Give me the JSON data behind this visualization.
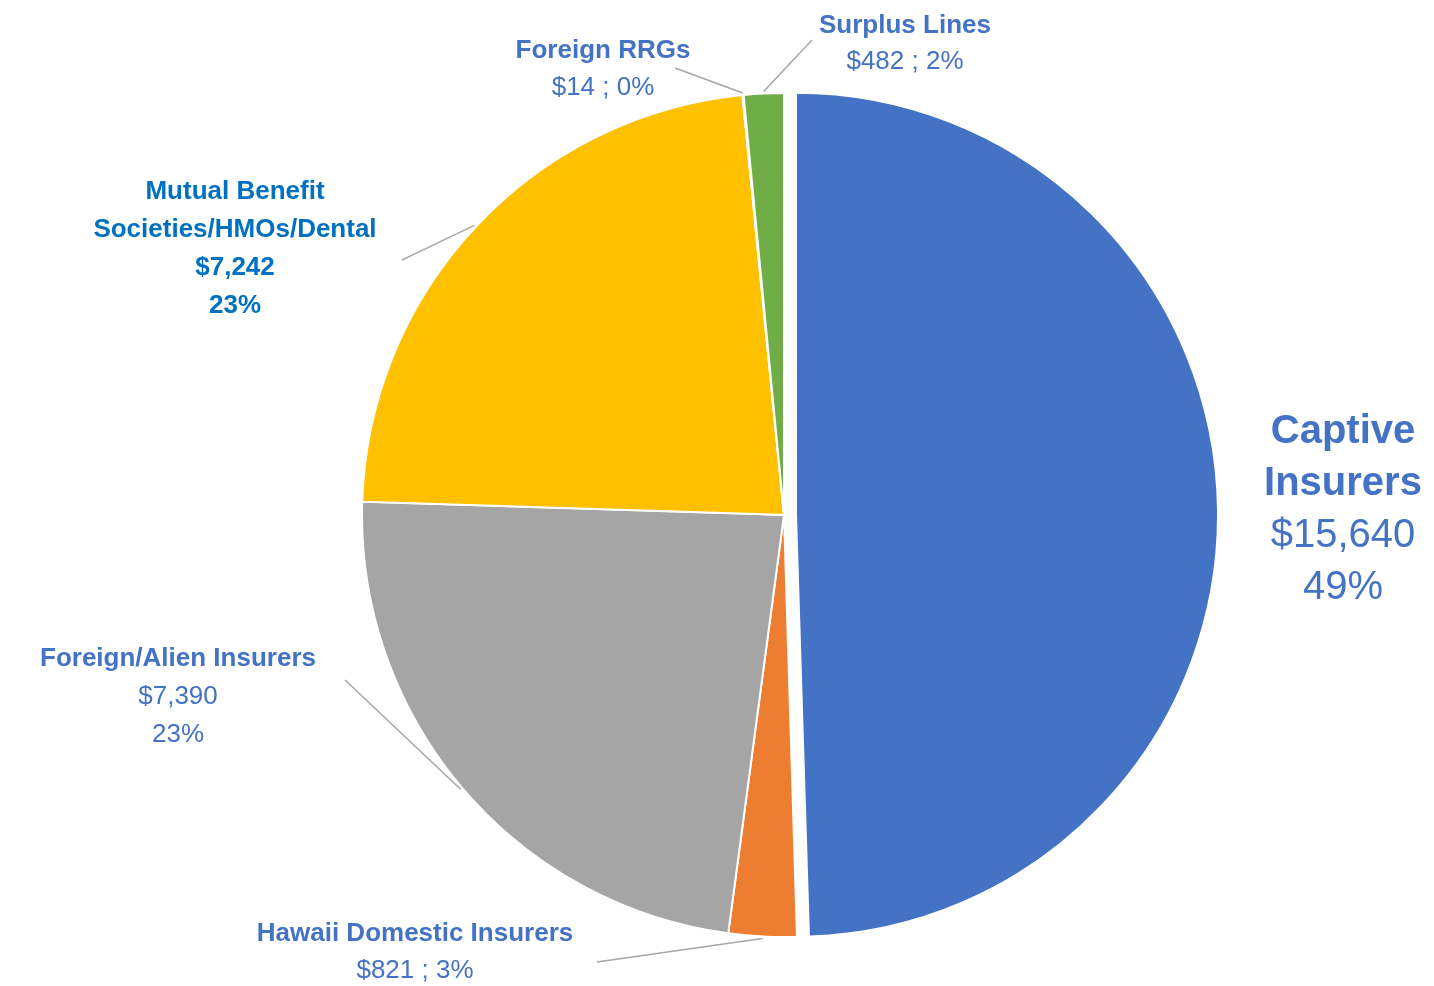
{
  "chart_data": {
    "type": "pie",
    "categories": [
      "Captive\nInsurers",
      "Hawaii Domestic Insurers",
      "Foreign/Alien Insurers",
      "Mutual Benefit\nSocieties/HMOs/Dental",
      "Foreign RRGs",
      "Surplus Lines"
    ],
    "values": [
      15640,
      821,
      7390,
      7242,
      14,
      482
    ],
    "colors": [
      "#4472c4",
      "#ed7d31",
      "#a5a5a5",
      "#ffc000",
      "#5b9bd5",
      "#70ad47"
    ],
    "value_labels": [
      "$15,640\n49%",
      "$821 ; 3%",
      "$7,390\n23%",
      "$7,242\n23%",
      "$14 ; 0%",
      "$482 ; 2%"
    ],
    "legend": false
  }
}
